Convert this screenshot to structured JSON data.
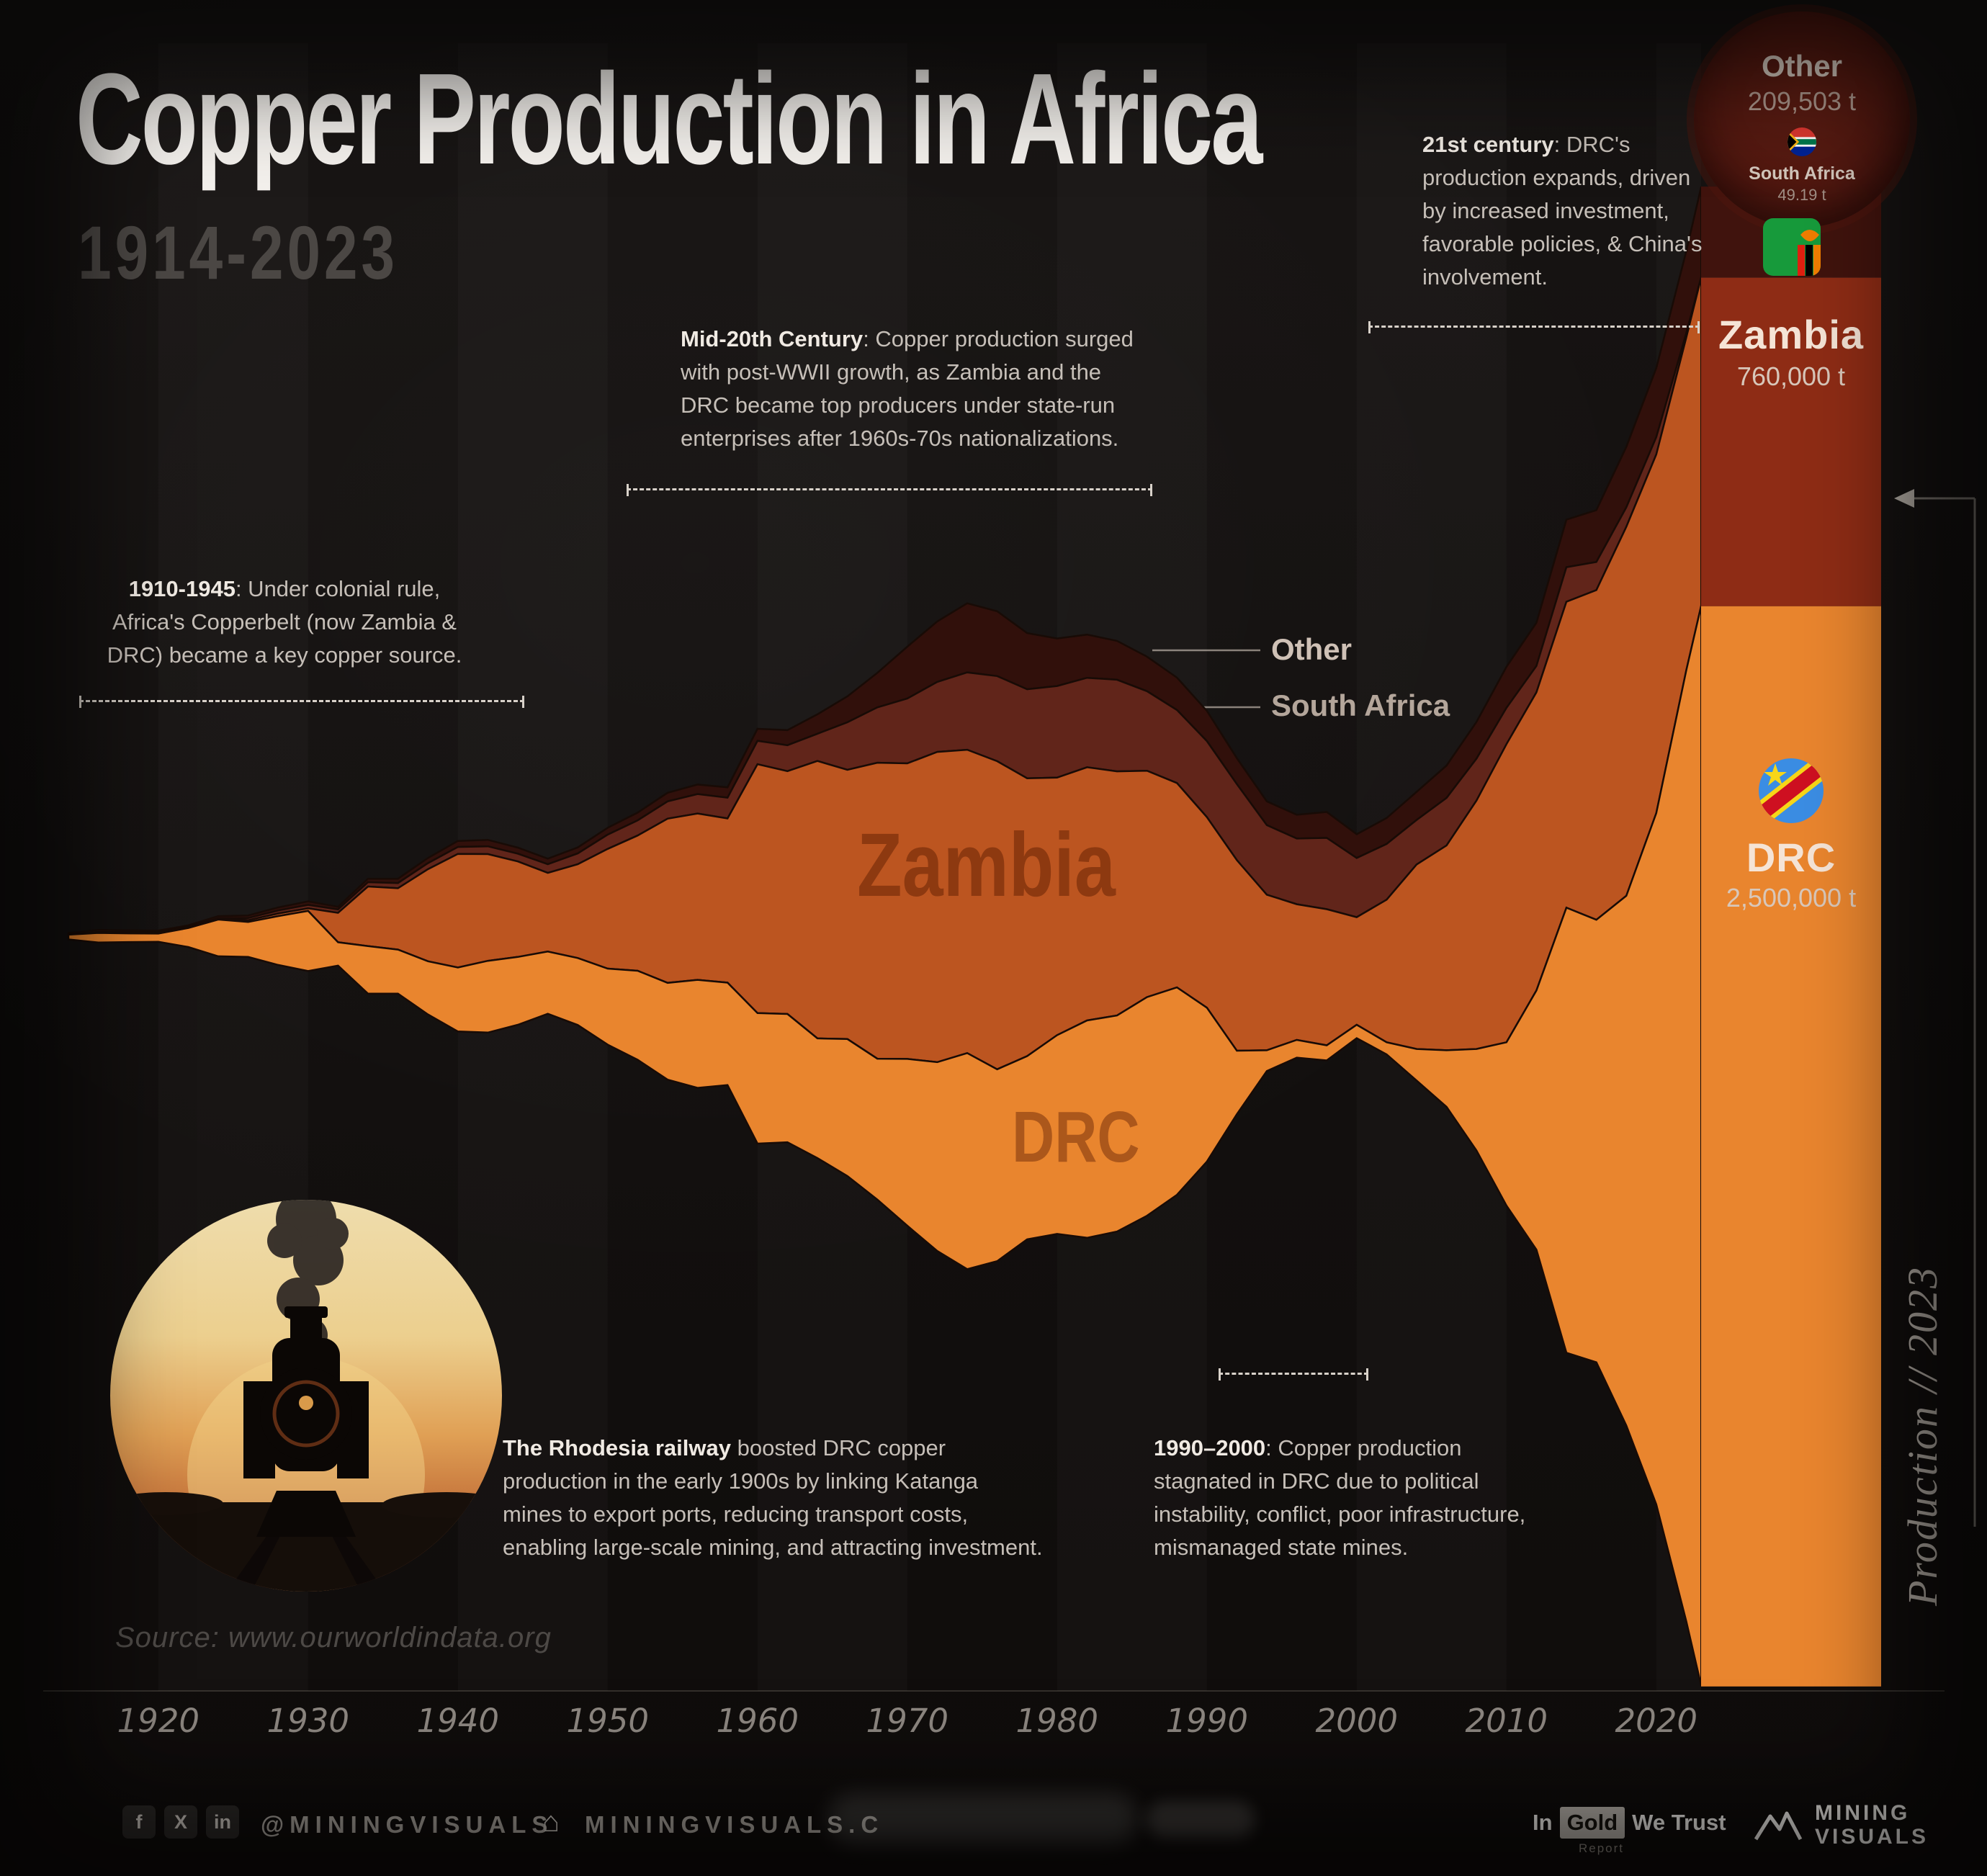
{
  "header": {
    "title": "Copper Production in Africa",
    "subtitle": "1914-2023"
  },
  "annotations": {
    "colonial": {
      "lead": "1910-1945",
      "body": ": Under colonial rule, Africa's Copperbelt (now Zambia & DRC) became a key copper source."
    },
    "mid_century": {
      "lead": "Mid-20th Century",
      "body": ": Copper production surged with post-WWII growth, as Zambia and the DRC became top producers under state-run enterprises after 1960s-70s nationalizations."
    },
    "modern": {
      "lead": "21st century",
      "body": ": DRC's production expands, driven by increased investment, favorable policies, & China's involvement."
    },
    "railway": {
      "lead": "The Rhodesia railway",
      "body": " boosted DRC copper production in the early 1900s by linking Katanga mines to export ports, reducing transport costs, enabling large-scale mining, and attracting investment."
    },
    "stagnation": {
      "lead": "1990–2000",
      "body": ": Copper production stagnated in DRC due to political instability, conflict, poor infrastructure, mismanaged state mines."
    }
  },
  "endcap": {
    "axis_note": "Production // 2023"
  },
  "source": "Source: www.ourworldindata.org",
  "footer": {
    "icon_f": "f",
    "icon_x": "X",
    "icon_in": "in",
    "icon_home": "⌂",
    "handle": "@MININGVISUALS",
    "site": "MININGVISUALS.C",
    "gold_in": "In",
    "gold_word": "Gold",
    "gold_rest": "We Trust",
    "gold_sub": "Report",
    "brand_line1": "MINING",
    "brand_line2": "VISUALS"
  },
  "colors": {
    "background": "#151211",
    "dashed_line": "#d8d1c9",
    "title_text": "#f3f0ec",
    "zambia": "#bc5520",
    "drc": "#e9852e",
    "south_africa": "#61251a",
    "other": "#31100b"
  },
  "chart_data": {
    "type": "area",
    "variant": "streamgraph",
    "title": "Copper Production in Africa 1914-2023",
    "unit": "kilotonnes of copper",
    "baseline": "centered",
    "stack_order": "top-to-bottom",
    "x_ticks": [
      1920,
      1930,
      1940,
      1950,
      1960,
      1970,
      1980,
      1990,
      2000,
      2010,
      2020
    ],
    "years": [
      1914,
      1916,
      1918,
      1920,
      1922,
      1924,
      1926,
      1928,
      1930,
      1932,
      1934,
      1936,
      1938,
      1940,
      1942,
      1944,
      1946,
      1948,
      1950,
      1952,
      1954,
      1956,
      1958,
      1960,
      1962,
      1964,
      1966,
      1968,
      1970,
      1972,
      1974,
      1976,
      1978,
      1980,
      1982,
      1984,
      1986,
      1988,
      1990,
      1992,
      1994,
      1996,
      1998,
      2000,
      2002,
      2004,
      2006,
      2008,
      2010,
      2012,
      2014,
      2016,
      2018,
      2020,
      2022,
      2023
    ],
    "series": [
      {
        "name": "Other",
        "color": "#31100b",
        "bar_color": "#40130d",
        "end_label": "209,503 t",
        "values": [
          4,
          5,
          4,
          4,
          4,
          5,
          6,
          7,
          8,
          6,
          8,
          10,
          12,
          14,
          15,
          14,
          13,
          14,
          16,
          18,
          20,
          22,
          24,
          28,
          35,
          45,
          60,
          80,
          120,
          140,
          160,
          150,
          130,
          110,
          100,
          90,
          80,
          75,
          70,
          60,
          55,
          55,
          60,
          55,
          60,
          65,
          75,
          85,
          95,
          100,
          110,
          120,
          140,
          160,
          190,
          209.5
        ]
      },
      {
        "name": "South Africa",
        "color": "#61251a",
        "bar_color": "#5a2016",
        "end_label": "49.19 t",
        "values": [
          0,
          0,
          0,
          0,
          0,
          0,
          5,
          7,
          8,
          8,
          10,
          12,
          14,
          16,
          18,
          18,
          20,
          25,
          33,
          35,
          40,
          45,
          48,
          54,
          60,
          63,
          110,
          128,
          150,
          162,
          179,
          197,
          206,
          212,
          207,
          212,
          184,
          169,
          176,
          176,
          161,
          152,
          165,
          137,
          129,
          103,
          110,
          97,
          84,
          61,
          80,
          65,
          45,
          40,
          10,
          0.05
        ]
      },
      {
        "name": "Zambia",
        "color": "#bc5520",
        "bar_color": "#8e2c15",
        "end_label": "760,000 t",
        "values": [
          0,
          2,
          3,
          3,
          2,
          3,
          4,
          6,
          6,
          68,
          138,
          142,
          213,
          263,
          247,
          221,
          182,
          217,
          277,
          313,
          380,
          385,
          380,
          576,
          562,
          642,
          623,
          685,
          684,
          718,
          702,
          713,
          643,
          596,
          586,
          565,
          524,
          473,
          441,
          441,
          360,
          314,
          315,
          249,
          330,
          427,
          474,
          575,
          690,
          690,
          708,
          763,
          854,
          830,
          770,
          760
        ]
      },
      {
        "name": "DRC",
        "color": "#e9852e",
        "bar_color": "#e9852e",
        "end_label": "2,500,000 t",
        "values": [
          11,
          22,
          20,
          19,
          44,
          85,
          81,
          113,
          139,
          54,
          110,
          102,
          123,
          148,
          166,
          157,
          144,
          155,
          176,
          206,
          224,
          250,
          237,
          302,
          297,
          277,
          317,
          326,
          386,
          437,
          500,
          444,
          424,
          460,
          503,
          500,
          506,
          480,
          356,
          147,
          48,
          41,
          35,
          31,
          28,
          73,
          131,
          235,
          378,
          600,
          1030,
          1024,
          1226,
          1600,
          2200,
          2500
        ]
      }
    ]
  }
}
